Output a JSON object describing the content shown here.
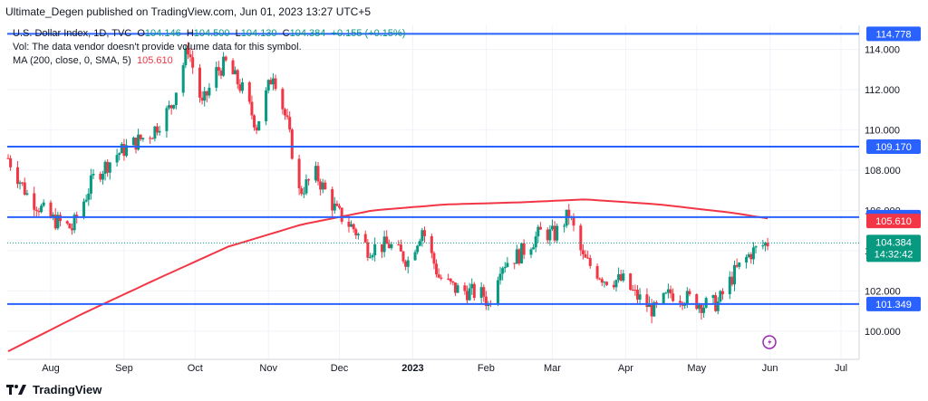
{
  "header": {
    "publisher": "Ultimate_Degen published on TradingView.com, Jun 01, 2023 13:27 UTC+5"
  },
  "legend": {
    "symbol": "U.S. Dollar Index, 1D, TVC",
    "o_label": "O",
    "o": "104.146",
    "h_label": "H",
    "h": "104.500",
    "l_label": "L",
    "l": "104.130",
    "c_label": "C",
    "c": "104.384",
    "change": "+0.155 (+0.15%)",
    "vol": "Vol: The data vendor doesn't provide volume data for this symbol.",
    "ma_label": "MA (200, close, 0, SMA, 5)",
    "ma_value": "105.610"
  },
  "footer": {
    "brand": "TradingView"
  },
  "colors": {
    "up": "#089981",
    "down": "#f23645",
    "ma": "#f23645",
    "hline": "#2962ff",
    "grid": "#f0f3fa",
    "text": "#131722",
    "axis_text": "#131722"
  },
  "chart_data": {
    "type": "candlestick",
    "currency": "USD",
    "ylim": [
      98.6,
      115.2
    ],
    "y_ticks": [
      "100.000",
      "102.000",
      "104.000",
      "106.000",
      "108.000",
      "110.000",
      "112.000",
      "114.000"
    ],
    "x_ticks": [
      "Aug",
      "Sep",
      "Oct",
      "Nov",
      "Dec",
      "2023",
      "Feb",
      "Mar",
      "Apr",
      "May",
      "Jun",
      "Jul"
    ],
    "x_tick_dates": [
      "2022-08-01",
      "2022-09-01",
      "2022-10-01",
      "2022-11-01",
      "2022-12-01",
      "2023-01-01",
      "2023-02-01",
      "2023-03-01",
      "2023-04-01",
      "2023-05-01",
      "2023-06-01",
      "2023-07-01"
    ],
    "horizontal_lines": [
      {
        "value": 114.778,
        "label": "114.778"
      },
      {
        "value": 109.17,
        "label": "109.170"
      },
      {
        "value": 105.669,
        "label": "105.669"
      },
      {
        "value": 101.349,
        "label": "101.349"
      }
    ],
    "last_price": {
      "value": 104.384,
      "label": "104.384",
      "countdown": "14:32:42"
    },
    "ma_last": {
      "value": 105.61,
      "label": "105.610"
    },
    "close_path": [
      [
        "2022-07-14",
        108.6
      ],
      [
        "2022-07-22",
        106.8
      ],
      [
        "2022-08-01",
        105.6
      ],
      [
        "2022-08-10",
        105.1
      ],
      [
        "2022-08-19",
        107.6
      ],
      [
        "2022-08-29",
        108.8
      ],
      [
        "2022-09-06",
        109.4
      ],
      [
        "2022-09-13",
        109.9
      ],
      [
        "2022-09-21",
        111.2
      ],
      [
        "2022-09-28",
        114.1
      ],
      [
        "2022-10-04",
        111.2
      ],
      [
        "2022-10-10",
        112.9
      ],
      [
        "2022-10-14",
        113.3
      ],
      [
        "2022-10-21",
        112.0
      ],
      [
        "2022-10-27",
        110.2
      ],
      [
        "2022-11-03",
        112.9
      ],
      [
        "2022-11-09",
        110.3
      ],
      [
        "2022-11-14",
        106.9
      ],
      [
        "2022-11-21",
        107.8
      ],
      [
        "2022-11-30",
        105.9
      ],
      [
        "2022-12-07",
        105.1
      ],
      [
        "2022-12-13",
        104.1
      ],
      [
        "2022-12-22",
        104.3
      ],
      [
        "2022-12-30",
        103.5
      ],
      [
        "2023-01-05",
        105.1
      ],
      [
        "2023-01-12",
        102.7
      ],
      [
        "2023-01-19",
        102.1
      ],
      [
        "2023-01-31",
        101.8
      ],
      [
        "2023-02-02",
        101.3
      ],
      [
        "2023-02-07",
        103.3
      ],
      [
        "2023-02-15",
        103.8
      ],
      [
        "2023-02-24",
        104.9
      ],
      [
        "2023-03-02",
        104.8
      ],
      [
        "2023-03-08",
        105.8
      ],
      [
        "2023-03-14",
        103.6
      ],
      [
        "2023-03-23",
        102.6
      ],
      [
        "2023-03-31",
        102.5
      ],
      [
        "2023-04-05",
        101.8
      ],
      [
        "2023-04-13",
        101.0
      ],
      [
        "2023-04-20",
        101.9
      ],
      [
        "2023-04-28",
        101.6
      ],
      [
        "2023-05-04",
        101.3
      ],
      [
        "2023-05-10",
        101.4
      ],
      [
        "2023-05-17",
        102.9
      ],
      [
        "2023-05-24",
        103.9
      ],
      [
        "2023-05-31",
        104.4
      ]
    ],
    "ma_path": [
      [
        "2022-07-14",
        99.0
      ],
      [
        "2022-08-15",
        100.9
      ],
      [
        "2022-09-15",
        102.6
      ],
      [
        "2022-10-15",
        104.2
      ],
      [
        "2022-11-15",
        105.3
      ],
      [
        "2022-12-15",
        106.0
      ],
      [
        "2023-01-15",
        106.3
      ],
      [
        "2023-02-15",
        106.4
      ],
      [
        "2023-03-15",
        106.55
      ],
      [
        "2023-04-15",
        106.3
      ],
      [
        "2023-05-15",
        105.9
      ],
      [
        "2023-05-31",
        105.61
      ]
    ]
  }
}
